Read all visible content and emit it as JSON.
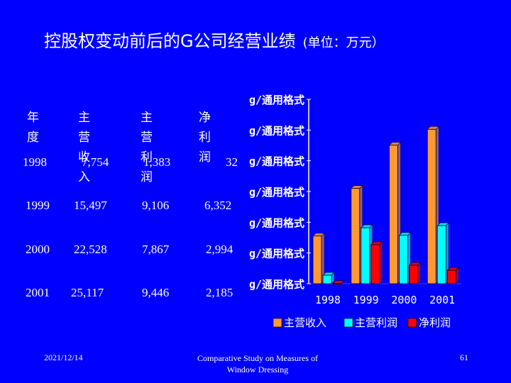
{
  "title": "控股权变动前后的G公司经营业绩",
  "title_unit": "(单位：万元）",
  "table": {
    "headers": {
      "year": "年度",
      "revenue_1": "主 营",
      "revenue_2": "收 入",
      "profit_1": "主  营",
      "profit_2": "利  润",
      "net": "净利润"
    },
    "rows": [
      {
        "year": "1998",
        "revenue": "7,754",
        "profit": "1,383",
        "net": "32"
      },
      {
        "year": "1999",
        "revenue": "15,497",
        "profit": "9,106",
        "net": "6,352"
      },
      {
        "year": "2000",
        "revenue": "22,528",
        "profit": "7,867",
        "net": "2,994"
      },
      {
        "year": "2001",
        "revenue": "25,117",
        "profit": "9,446",
        "net": "2,185"
      }
    ]
  },
  "chart_data": {
    "type": "bar",
    "categories": [
      "1998",
      "1999",
      "2000",
      "2001"
    ],
    "series": [
      {
        "name": "主营收入",
        "values": [
          7754,
          15497,
          22528,
          25117
        ],
        "color": "#ff9933"
      },
      {
        "name": "主营利润",
        "values": [
          1383,
          9106,
          7867,
          9446
        ],
        "color": "#00ffff"
      },
      {
        "name": "净利润",
        "values": [
          32,
          6352,
          2994,
          2185
        ],
        "color": "#ff0000"
      }
    ],
    "ytick_labels": [
      "g/通用格式",
      "g/通用格式",
      "g/通用格式",
      "g/通用格式",
      "g/通用格式",
      "g/通用格式",
      "g/通用格式"
    ],
    "ylim": [
      0,
      30000
    ],
    "legend_position": "bottom"
  },
  "footer": {
    "date": "2021/12/14",
    "source_line1": "Comparative Study on Measures of",
    "source_line2": "Window Dressing",
    "page": "61"
  }
}
